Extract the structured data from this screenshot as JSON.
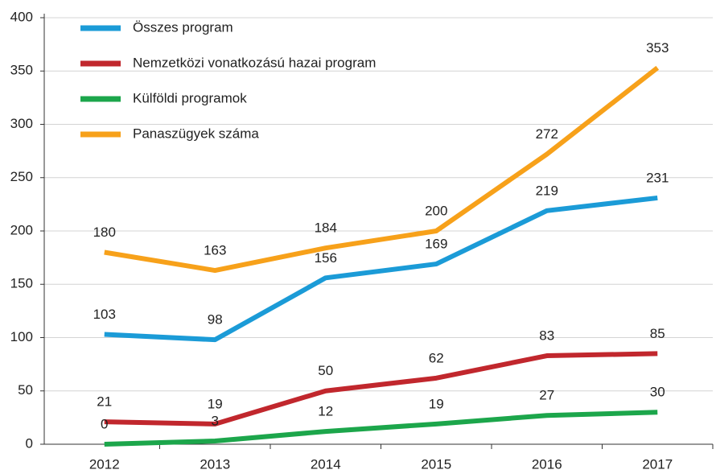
{
  "chart_data": {
    "type": "line",
    "categories": [
      "2012",
      "2013",
      "2014",
      "2015",
      "2016",
      "2017"
    ],
    "series": [
      {
        "name": "Összes program",
        "color": "#1b9bd7",
        "values": [
          103,
          98,
          156,
          169,
          219,
          231
        ]
      },
      {
        "name": "Nemzetközi vonatkozású hazai program",
        "color": "#c1272d",
        "values": [
          21,
          19,
          50,
          62,
          83,
          85
        ]
      },
      {
        "name": "Külföldi programok",
        "color": "#1ca64b",
        "values": [
          0,
          3,
          12,
          19,
          27,
          30
        ]
      },
      {
        "name": "Panaszügyek száma",
        "color": "#f7a11a",
        "values": [
          180,
          163,
          184,
          200,
          272,
          353
        ]
      }
    ],
    "ylim": [
      0,
      400
    ],
    "yticks": [
      0,
      50,
      100,
      150,
      200,
      250,
      300,
      350,
      400
    ],
    "grid": true,
    "legend": "upper left"
  }
}
